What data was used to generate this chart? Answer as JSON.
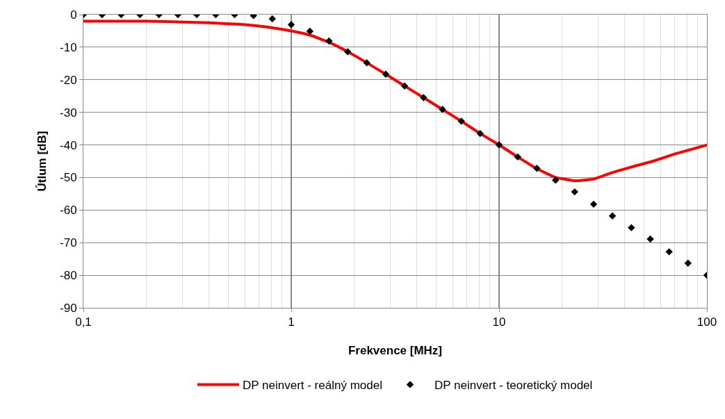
{
  "chart_data": {
    "type": "line",
    "xlabel": "Frekvence [MHz]",
    "ylabel": "Útlum [dB]",
    "log": "x",
    "xlim": [
      0.1,
      100
    ],
    "xticks": [
      {
        "value": 0.1,
        "label": "0,1"
      },
      1,
      10,
      100
    ],
    "ylim": [
      -90,
      0
    ],
    "yticks": [
      -90,
      -80,
      -70,
      -60,
      -50,
      -40,
      -30,
      -20,
      -10,
      0
    ],
    "grid": true,
    "legend": "bottom",
    "series": [
      {
        "name": "DP neinvert - reálný model",
        "color": "#ff0000",
        "line_style": "solid",
        "marker": "none",
        "x": [
          0.1,
          0.2,
          0.3,
          0.4,
          0.5,
          0.6,
          0.7,
          0.8,
          1,
          1.23,
          1.52,
          1.87,
          2.31,
          2.85,
          3.51,
          4.33,
          5.34,
          6.58,
          8.11,
          10,
          12.3,
          15.2,
          18.7,
          23.1,
          28.5,
          35,
          45,
          55,
          70,
          100
        ],
        "values": [
          -2,
          -2,
          -2.3,
          -2.5,
          -2.8,
          -3.1,
          -3.5,
          -4,
          -5,
          -6.3,
          -8.5,
          -11.4,
          -14.8,
          -18.3,
          -21.9,
          -25.5,
          -29.1,
          -32.7,
          -36.5,
          -40,
          -43.7,
          -47.3,
          -50,
          -51,
          -50.5,
          -48.5,
          -46.5,
          -45,
          -42.8,
          -40
        ]
      },
      {
        "name": "DP neinvert - teoretický model",
        "type": "scatter",
        "color": "#000000",
        "marker": "diamond",
        "x": [
          0.1,
          0.123,
          0.152,
          0.187,
          0.231,
          0.285,
          0.351,
          0.433,
          0.534,
          0.658,
          0.811,
          1,
          1.23,
          1.52,
          1.87,
          2.31,
          2.85,
          3.51,
          4.33,
          5.34,
          6.58,
          8.11,
          10,
          12.3,
          15.2,
          18.7,
          23.1,
          28.5,
          35.1,
          43.3,
          53.4,
          65.8,
          81.1,
          100
        ],
        "values": [
          0,
          0,
          0,
          0,
          0,
          0,
          0,
          0,
          0,
          -0.3,
          -1.3,
          -3.1,
          -5.1,
          -8.1,
          -11.4,
          -14.8,
          -18.3,
          -21.9,
          -25.5,
          -29.1,
          -32.7,
          -36.5,
          -40,
          -43.7,
          -47.2,
          -50.8,
          -54.4,
          -58.2,
          -61.8,
          -65.4,
          -68.9,
          -72.8,
          -76.3,
          -80
        ]
      }
    ]
  }
}
